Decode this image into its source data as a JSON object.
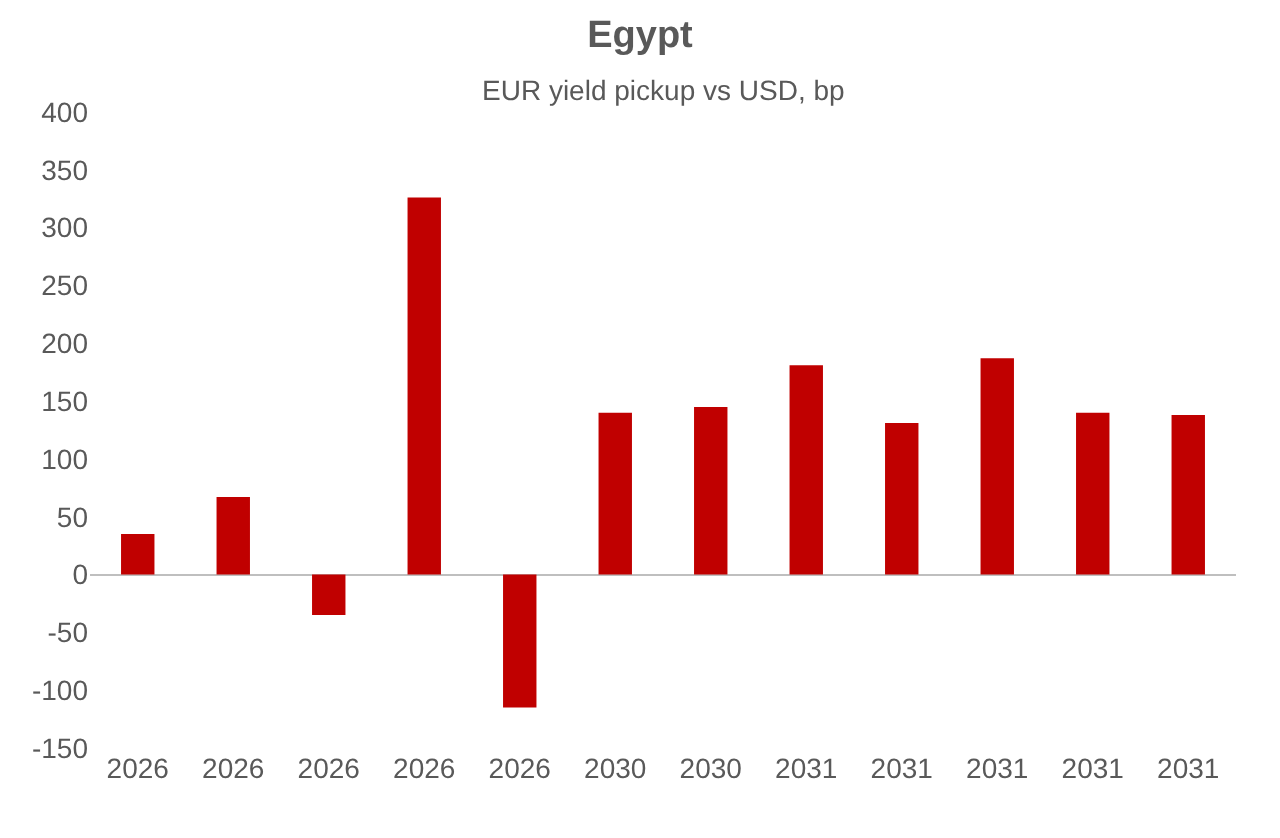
{
  "chart_data": {
    "type": "bar",
    "title": "Egypt",
    "subtitle": "EUR yield pickup vs USD, bp",
    "categories": [
      "2026",
      "2026",
      "2026",
      "2026",
      "2026",
      "2030",
      "2030",
      "2031",
      "2031",
      "2031",
      "2031",
      "2031"
    ],
    "values": [
      35,
      67,
      -35,
      326,
      -115,
      140,
      145,
      181,
      131,
      187,
      140,
      138
    ],
    "color": "#c00000",
    "ylim": [
      -150,
      400
    ],
    "yticks": [
      -150,
      -100,
      -50,
      0,
      50,
      100,
      150,
      200,
      250,
      300,
      350,
      400
    ]
  }
}
